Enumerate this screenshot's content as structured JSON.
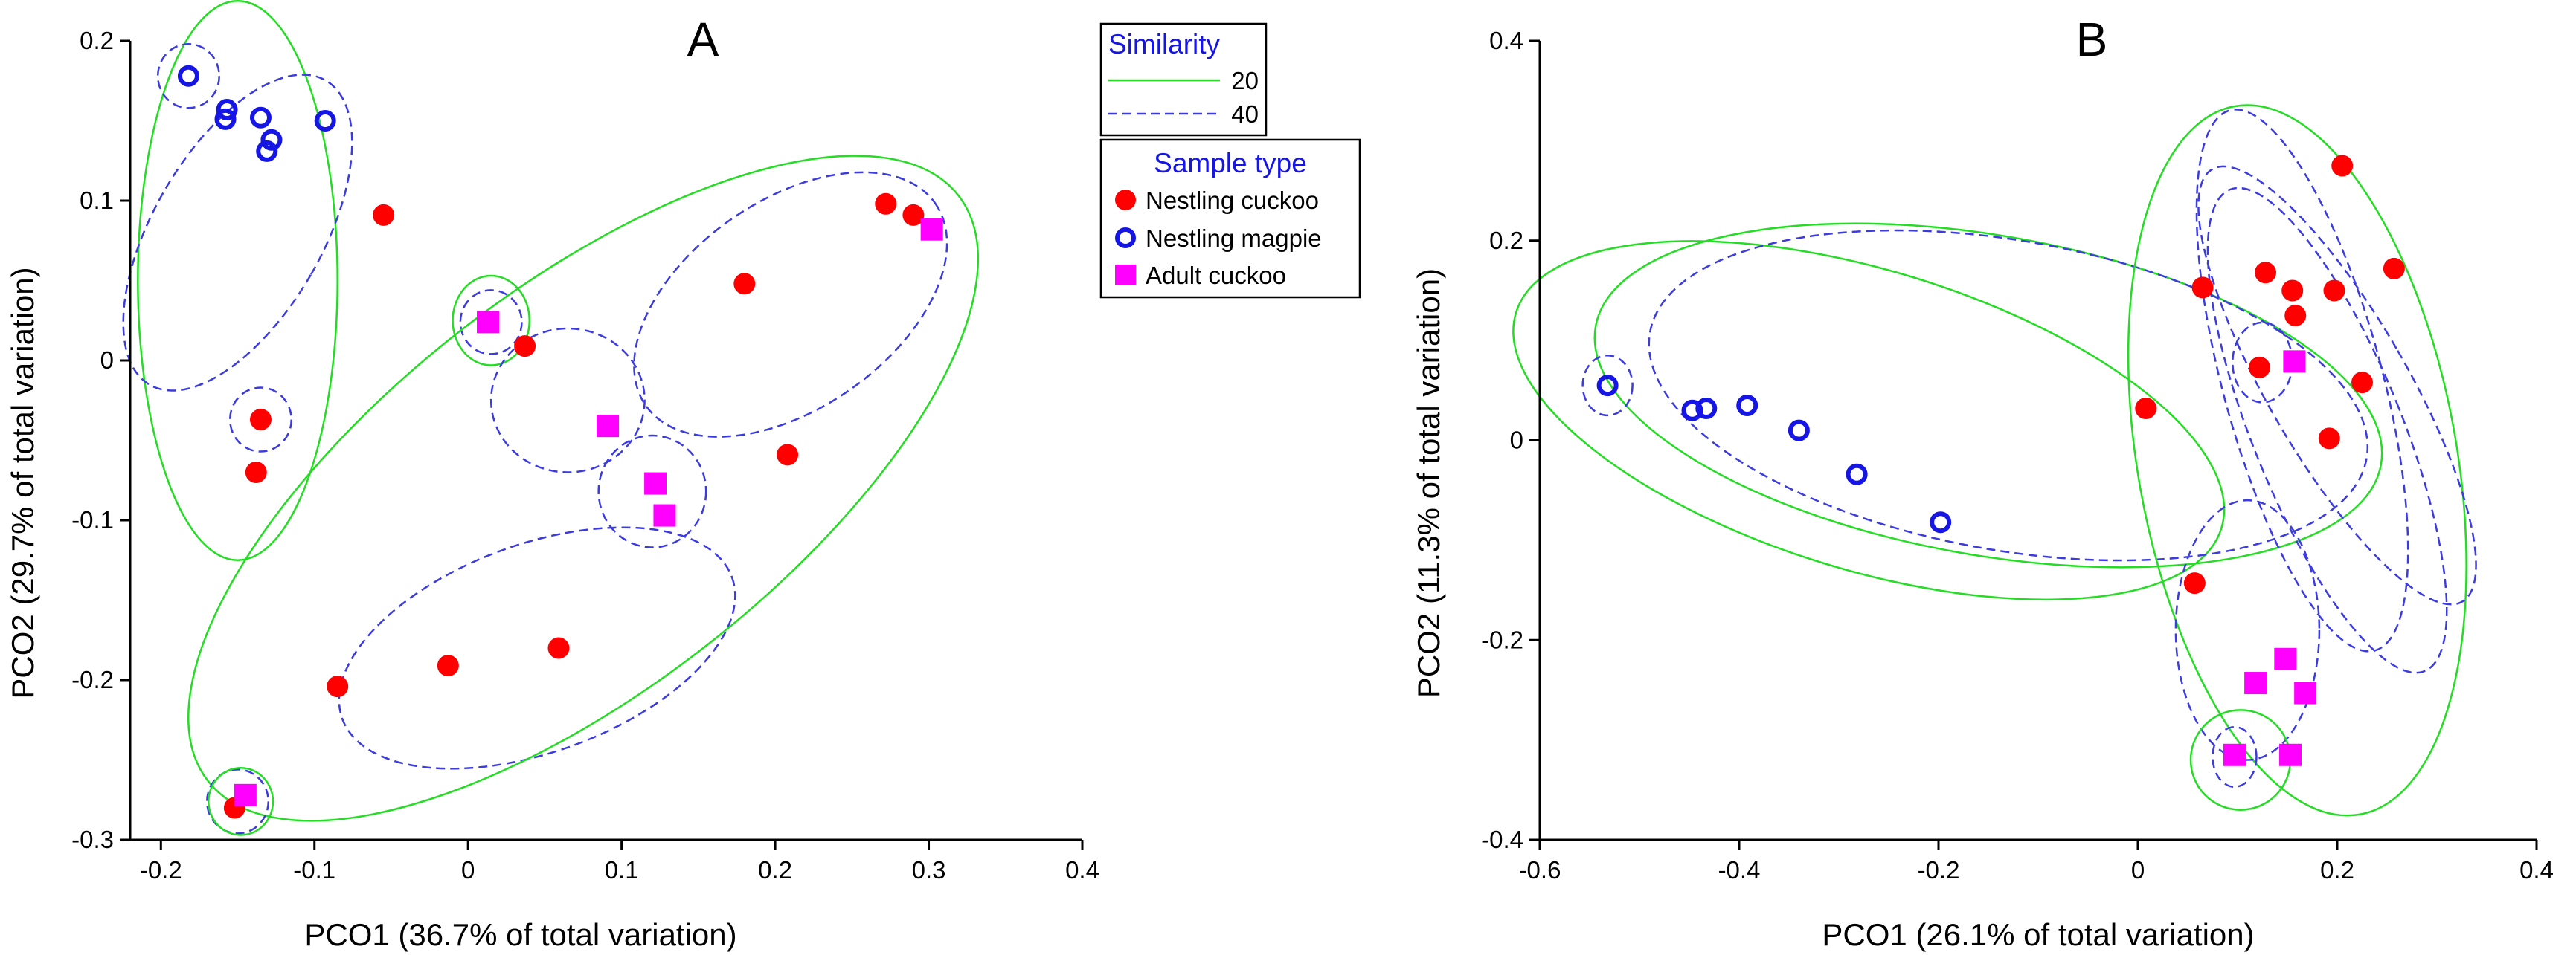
{
  "colors": {
    "nestling_cuckoo": "#ff0000",
    "nestling_magpie": "#1515e6",
    "adult_cuckoo": "#ff00ff",
    "sim20": "#22dd22",
    "sim40": "#3b3be0"
  },
  "legend": {
    "similarity": {
      "title": "Similarity",
      "items": [
        {
          "label": "20",
          "style": "solid-green"
        },
        {
          "label": "40",
          "style": "dashed-blue"
        }
      ]
    },
    "sample_type": {
      "title": "Sample type",
      "items": [
        {
          "label": "Nestling cuckoo",
          "marker": "filled-circle"
        },
        {
          "label": "Nestling magpie",
          "marker": "open-circle"
        },
        {
          "label": "Adult cuckoo",
          "marker": "square"
        }
      ]
    }
  },
  "chart_data": [
    {
      "panel": "A",
      "type": "scatter",
      "title": "A",
      "xlabel": "PCO1 (36.7% of total variation)",
      "ylabel": "PCO2 (29.7% of total variation)",
      "xlim": [
        -0.22,
        0.4
      ],
      "ylim": [
        -0.3,
        0.2
      ],
      "xticks": [
        -0.2,
        -0.1,
        0,
        0.1,
        0.2,
        0.3,
        0.4
      ],
      "xtick_labels": [
        "-0.2",
        "-0.1",
        "0",
        "0.1",
        "0.2",
        "0.3",
        "0.4"
      ],
      "yticks": [
        -0.3,
        -0.2,
        -0.1,
        0,
        0.1,
        0.2
      ],
      "ytick_labels": [
        "-0.3",
        "-0.2",
        "-0.1",
        "0",
        "0.1",
        "0.2"
      ],
      "series": [
        {
          "name": "Nestling cuckoo",
          "x": [
            -0.055,
            -0.135,
            -0.138,
            0.037,
            -0.085,
            -0.013,
            0.059,
            0.18,
            0.208,
            0.272,
            0.29,
            -0.152
          ],
          "y": [
            0.091,
            -0.037,
            -0.07,
            0.009,
            -0.204,
            -0.191,
            -0.18,
            0.048,
            -0.059,
            0.098,
            0.091,
            -0.28
          ]
        },
        {
          "name": "Nestling magpie",
          "x": [
            -0.182,
            -0.157,
            -0.158,
            -0.135,
            -0.128,
            -0.131,
            -0.093
          ],
          "y": [
            0.178,
            0.157,
            0.151,
            0.152,
            0.138,
            0.131,
            0.15
          ]
        },
        {
          "name": "Adult cuckoo",
          "x": [
            0.013,
            0.091,
            0.122,
            0.128,
            0.302,
            -0.145
          ],
          "y": [
            0.024,
            -0.041,
            -0.077,
            -0.097,
            0.082,
            -0.272
          ]
        }
      ],
      "clusters": [
        {
          "similarity": 20,
          "cx": -0.15,
          "cy": 0.05,
          "rx": 0.065,
          "ry": 0.175,
          "angle_deg": 0
        },
        {
          "similarity": 40,
          "cx": -0.15,
          "cy": 0.08,
          "rx": 0.055,
          "ry": 0.11,
          "angle_deg": -30
        },
        {
          "similarity": 40,
          "cx": -0.182,
          "cy": 0.178,
          "rx": 0.02,
          "ry": 0.02,
          "angle_deg": 0
        },
        {
          "similarity": 40,
          "cx": -0.135,
          "cy": -0.037,
          "rx": 0.02,
          "ry": 0.02,
          "angle_deg": 0
        },
        {
          "similarity": 20,
          "cx": 0.015,
          "cy": 0.025,
          "rx": 0.025,
          "ry": 0.028,
          "angle_deg": 0
        },
        {
          "similarity": 40,
          "cx": 0.015,
          "cy": 0.024,
          "rx": 0.02,
          "ry": 0.02,
          "angle_deg": 0
        },
        {
          "similarity": 40,
          "cx": 0.065,
          "cy": -0.025,
          "rx": 0.05,
          "ry": 0.045,
          "angle_deg": 0
        },
        {
          "similarity": 40,
          "cx": 0.12,
          "cy": -0.082,
          "rx": 0.035,
          "ry": 0.035,
          "angle_deg": 0
        },
        {
          "similarity": 40,
          "cx": 0.045,
          "cy": -0.18,
          "rx": 0.135,
          "ry": 0.065,
          "angle_deg": 20
        },
        {
          "similarity": 40,
          "cx": 0.21,
          "cy": 0.035,
          "rx": 0.115,
          "ry": 0.065,
          "angle_deg": 35
        },
        {
          "similarity": 20,
          "cx": 0.075,
          "cy": -0.08,
          "rx": 0.31,
          "ry": 0.125,
          "angle_deg": 38
        },
        {
          "similarity": 40,
          "cx": -0.15,
          "cy": -0.276,
          "rx": 0.02,
          "ry": 0.02,
          "angle_deg": 0
        },
        {
          "similarity": 20,
          "cx": -0.148,
          "cy": -0.276,
          "rx": 0.021,
          "ry": 0.021,
          "angle_deg": 0
        }
      ]
    },
    {
      "panel": "B",
      "type": "scatter",
      "title": "B",
      "xlabel": "PCO1 (26.1% of total variation)",
      "ylabel": "PCO2 (11.3% of total variation)",
      "xlim": [
        -0.6,
        0.4
      ],
      "ylim": [
        -0.4,
        0.4
      ],
      "xticks": [
        -0.6,
        -0.4,
        -0.2,
        0,
        0.2,
        0.4
      ],
      "xtick_labels": [
        "-0.6",
        "-0.4",
        "-0.2",
        "0",
        "0.2",
        "0.4"
      ],
      "yticks": [
        -0.4,
        -0.2,
        0,
        0.2,
        0.4
      ],
      "ytick_labels": [
        "-0.4",
        "-0.2",
        "0",
        "0.2",
        "0.4"
      ],
      "series": [
        {
          "name": "Nestling cuckoo",
          "x": [
            0.205,
            0.065,
            0.128,
            0.155,
            0.197,
            0.257,
            0.158,
            0.122,
            0.008,
            0.225,
            0.192,
            0.057
          ],
          "y": [
            0.275,
            0.153,
            0.168,
            0.15,
            0.15,
            0.172,
            0.125,
            0.073,
            0.032,
            0.058,
            0.002,
            -0.143
          ]
        },
        {
          "name": "Nestling magpie",
          "x": [
            -0.532,
            -0.447,
            -0.433,
            -0.392,
            -0.34,
            -0.282,
            -0.198
          ],
          "y": [
            0.055,
            0.03,
            0.032,
            0.035,
            0.01,
            -0.034,
            -0.082
          ]
        },
        {
          "name": "Adult cuckoo",
          "x": [
            0.157,
            0.118,
            0.148,
            0.168,
            0.097,
            0.153
          ],
          "y": [
            0.079,
            -0.243,
            -0.219,
            -0.253,
            -0.315,
            -0.315
          ]
        }
      ],
      "clusters": [
        {
          "similarity": 20,
          "cx": -0.27,
          "cy": 0.02,
          "rx": 0.37,
          "ry": 0.15,
          "angle_deg": -17
        },
        {
          "similarity": 20,
          "cx": -0.15,
          "cy": 0.045,
          "rx": 0.4,
          "ry": 0.16,
          "angle_deg": -10
        },
        {
          "similarity": 40,
          "cx": -0.13,
          "cy": 0.045,
          "rx": 0.365,
          "ry": 0.155,
          "angle_deg": -10
        },
        {
          "similarity": 40,
          "cx": -0.532,
          "cy": 0.055,
          "rx": 0.025,
          "ry": 0.03,
          "angle_deg": 0
        },
        {
          "similarity": 20,
          "cx": 0.16,
          "cy": -0.02,
          "rx": 0.16,
          "ry": 0.36,
          "angle_deg": 10
        },
        {
          "similarity": 40,
          "cx": 0.165,
          "cy": 0.06,
          "rx": 0.08,
          "ry": 0.28,
          "angle_deg": 15
        },
        {
          "similarity": 40,
          "cx": 0.19,
          "cy": 0.01,
          "rx": 0.075,
          "ry": 0.26,
          "angle_deg": 22
        },
        {
          "similarity": 40,
          "cx": 0.2,
          "cy": 0.055,
          "rx": 0.07,
          "ry": 0.25,
          "angle_deg": 30
        },
        {
          "similarity": 40,
          "cx": 0.125,
          "cy": 0.078,
          "rx": 0.03,
          "ry": 0.04,
          "angle_deg": 0
        },
        {
          "similarity": 40,
          "cx": 0.11,
          "cy": -0.19,
          "rx": 0.072,
          "ry": 0.13,
          "angle_deg": 0
        },
        {
          "similarity": 20,
          "cx": 0.103,
          "cy": -0.32,
          "rx": 0.05,
          "ry": 0.05,
          "angle_deg": 0
        },
        {
          "similarity": 40,
          "cx": 0.097,
          "cy": -0.317,
          "rx": 0.022,
          "ry": 0.03,
          "angle_deg": 0
        }
      ]
    }
  ]
}
